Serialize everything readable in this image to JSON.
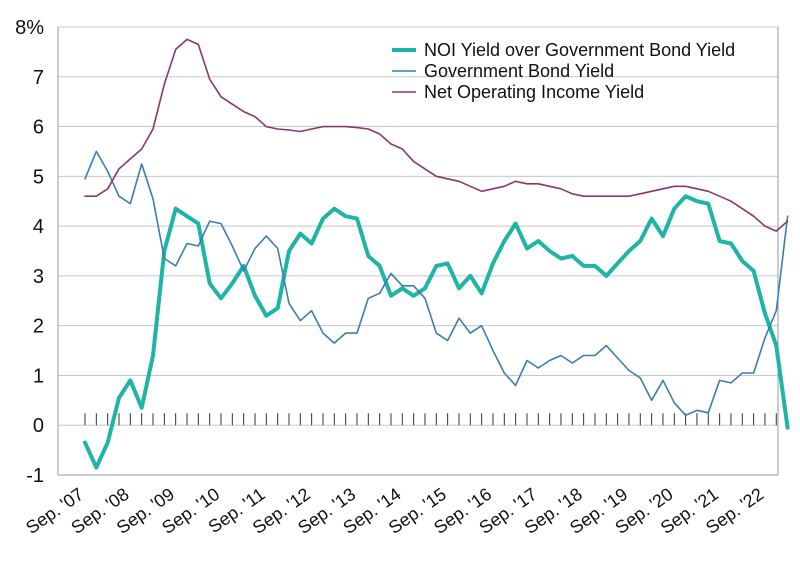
{
  "chart_data": {
    "type": "line",
    "title": "",
    "xlabel": "",
    "ylabel": "",
    "ylim": [
      -1,
      8
    ],
    "y_ticks": [
      "-1",
      "0",
      "1",
      "2",
      "3",
      "4",
      "5",
      "6",
      "7",
      "8%"
    ],
    "x_ticks": [
      "Sep. '07",
      "Sep. '08",
      "Sep. '09",
      "Sep. '10",
      "Sep. '11",
      "Sep. '12",
      "Sep. '13",
      "Sep. '14",
      "Sep. '15",
      "Sep. '16",
      "Sep. '17",
      "Sep. '18",
      "Sep. '19",
      "Sep. '20",
      "Sep. '21",
      "Sep. '22"
    ],
    "grid": true,
    "legend_position": "top-right",
    "colors": {
      "noi_spread": "#1eb5a6",
      "gov_bond": "#3a7db5",
      "noi_yield": "#8a3770"
    },
    "series": [
      {
        "name": "NOI Yield over Government Bond Yield",
        "key": "noi_spread",
        "points": [
          [
            2007.0,
            -0.35
          ],
          [
            2007.25,
            -0.85
          ],
          [
            2007.5,
            -0.35
          ],
          [
            2007.75,
            0.55
          ],
          [
            2008.0,
            0.9
          ],
          [
            2008.25,
            0.35
          ],
          [
            2008.5,
            1.4
          ],
          [
            2008.75,
            3.5
          ],
          [
            2009.0,
            4.35
          ],
          [
            2009.25,
            4.2
          ],
          [
            2009.5,
            4.05
          ],
          [
            2009.75,
            2.85
          ],
          [
            2010.0,
            2.55
          ],
          [
            2010.25,
            2.85
          ],
          [
            2010.5,
            3.2
          ],
          [
            2010.75,
            2.6
          ],
          [
            2011.0,
            2.2
          ],
          [
            2011.25,
            2.35
          ],
          [
            2011.5,
            3.5
          ],
          [
            2011.75,
            3.85
          ],
          [
            2012.0,
            3.65
          ],
          [
            2012.25,
            4.15
          ],
          [
            2012.5,
            4.35
          ],
          [
            2012.75,
            4.2
          ],
          [
            2013.0,
            4.15
          ],
          [
            2013.25,
            3.4
          ],
          [
            2013.5,
            3.2
          ],
          [
            2013.75,
            2.6
          ],
          [
            2014.0,
            2.75
          ],
          [
            2014.25,
            2.6
          ],
          [
            2014.5,
            2.75
          ],
          [
            2014.75,
            3.2
          ],
          [
            2015.0,
            3.25
          ],
          [
            2015.25,
            2.75
          ],
          [
            2015.5,
            3.0
          ],
          [
            2015.75,
            2.65
          ],
          [
            2016.0,
            3.25
          ],
          [
            2016.25,
            3.7
          ],
          [
            2016.5,
            4.05
          ],
          [
            2016.75,
            3.55
          ],
          [
            2017.0,
            3.7
          ],
          [
            2017.25,
            3.5
          ],
          [
            2017.5,
            3.35
          ],
          [
            2017.75,
            3.4
          ],
          [
            2018.0,
            3.2
          ],
          [
            2018.25,
            3.2
          ],
          [
            2018.5,
            3.0
          ],
          [
            2018.75,
            3.25
          ],
          [
            2019.0,
            3.5
          ],
          [
            2019.25,
            3.7
          ],
          [
            2019.5,
            4.15
          ],
          [
            2019.75,
            3.8
          ],
          [
            2020.0,
            4.35
          ],
          [
            2020.25,
            4.6
          ],
          [
            2020.5,
            4.5
          ],
          [
            2020.75,
            4.45
          ],
          [
            2021.0,
            3.7
          ],
          [
            2021.25,
            3.65
          ],
          [
            2021.5,
            3.3
          ],
          [
            2021.75,
            3.1
          ],
          [
            2022.0,
            2.25
          ],
          [
            2022.25,
            1.6
          ],
          [
            2022.5,
            -0.05
          ]
        ]
      },
      {
        "name": "Government Bond Yield",
        "key": "gov_bond",
        "points": [
          [
            2007.0,
            4.95
          ],
          [
            2007.25,
            5.5
          ],
          [
            2007.5,
            5.1
          ],
          [
            2007.75,
            4.6
          ],
          [
            2008.0,
            4.45
          ],
          [
            2008.25,
            5.25
          ],
          [
            2008.5,
            4.55
          ],
          [
            2008.75,
            3.35
          ],
          [
            2009.0,
            3.2
          ],
          [
            2009.25,
            3.65
          ],
          [
            2009.5,
            3.6
          ],
          [
            2009.75,
            4.1
          ],
          [
            2010.0,
            4.05
          ],
          [
            2010.25,
            3.6
          ],
          [
            2010.5,
            3.1
          ],
          [
            2010.75,
            3.55
          ],
          [
            2011.0,
            3.8
          ],
          [
            2011.25,
            3.55
          ],
          [
            2011.5,
            2.45
          ],
          [
            2011.75,
            2.1
          ],
          [
            2012.0,
            2.3
          ],
          [
            2012.25,
            1.85
          ],
          [
            2012.5,
            1.65
          ],
          [
            2012.75,
            1.85
          ],
          [
            2013.0,
            1.85
          ],
          [
            2013.25,
            2.55
          ],
          [
            2013.5,
            2.65
          ],
          [
            2013.75,
            3.05
          ],
          [
            2014.0,
            2.8
          ],
          [
            2014.25,
            2.8
          ],
          [
            2014.5,
            2.55
          ],
          [
            2014.75,
            1.85
          ],
          [
            2015.0,
            1.7
          ],
          [
            2015.25,
            2.15
          ],
          [
            2015.5,
            1.85
          ],
          [
            2015.75,
            2.0
          ],
          [
            2016.0,
            1.5
          ],
          [
            2016.25,
            1.05
          ],
          [
            2016.5,
            0.8
          ],
          [
            2016.75,
            1.3
          ],
          [
            2017.0,
            1.15
          ],
          [
            2017.25,
            1.3
          ],
          [
            2017.5,
            1.4
          ],
          [
            2017.75,
            1.25
          ],
          [
            2018.0,
            1.4
          ],
          [
            2018.25,
            1.4
          ],
          [
            2018.5,
            1.6
          ],
          [
            2018.75,
            1.35
          ],
          [
            2019.0,
            1.1
          ],
          [
            2019.25,
            0.95
          ],
          [
            2019.5,
            0.5
          ],
          [
            2019.75,
            0.9
          ],
          [
            2020.0,
            0.45
          ],
          [
            2020.25,
            0.2
          ],
          [
            2020.5,
            0.3
          ],
          [
            2020.75,
            0.25
          ],
          [
            2021.0,
            0.9
          ],
          [
            2021.25,
            0.85
          ],
          [
            2021.5,
            1.05
          ],
          [
            2021.75,
            1.05
          ],
          [
            2022.0,
            1.75
          ],
          [
            2022.25,
            2.3
          ],
          [
            2022.5,
            4.2
          ]
        ]
      },
      {
        "name": "Net Operating Income Yield",
        "key": "noi_yield",
        "points": [
          [
            2007.0,
            4.6
          ],
          [
            2007.25,
            4.6
          ],
          [
            2007.5,
            4.75
          ],
          [
            2007.75,
            5.15
          ],
          [
            2008.0,
            5.35
          ],
          [
            2008.25,
            5.55
          ],
          [
            2008.5,
            5.95
          ],
          [
            2008.75,
            6.85
          ],
          [
            2009.0,
            7.55
          ],
          [
            2009.25,
            7.75
          ],
          [
            2009.5,
            7.65
          ],
          [
            2009.75,
            6.95
          ],
          [
            2010.0,
            6.6
          ],
          [
            2010.25,
            6.45
          ],
          [
            2010.5,
            6.3
          ],
          [
            2010.75,
            6.2
          ],
          [
            2011.0,
            6.0
          ],
          [
            2011.25,
            5.95
          ],
          [
            2011.5,
            5.93
          ],
          [
            2011.75,
            5.9
          ],
          [
            2012.0,
            5.95
          ],
          [
            2012.25,
            6.0
          ],
          [
            2012.5,
            6.0
          ],
          [
            2012.75,
            6.0
          ],
          [
            2013.0,
            5.98
          ],
          [
            2013.25,
            5.95
          ],
          [
            2013.5,
            5.85
          ],
          [
            2013.75,
            5.65
          ],
          [
            2014.0,
            5.55
          ],
          [
            2014.25,
            5.3
          ],
          [
            2014.5,
            5.15
          ],
          [
            2014.75,
            5.0
          ],
          [
            2015.0,
            4.95
          ],
          [
            2015.25,
            4.9
          ],
          [
            2015.5,
            4.8
          ],
          [
            2015.75,
            4.7
          ],
          [
            2016.0,
            4.75
          ],
          [
            2016.25,
            4.8
          ],
          [
            2016.5,
            4.9
          ],
          [
            2016.75,
            4.85
          ],
          [
            2017.0,
            4.85
          ],
          [
            2017.25,
            4.8
          ],
          [
            2017.5,
            4.75
          ],
          [
            2017.75,
            4.65
          ],
          [
            2018.0,
            4.6
          ],
          [
            2018.25,
            4.6
          ],
          [
            2018.5,
            4.6
          ],
          [
            2018.75,
            4.6
          ],
          [
            2019.0,
            4.6
          ],
          [
            2019.25,
            4.65
          ],
          [
            2019.5,
            4.7
          ],
          [
            2019.75,
            4.75
          ],
          [
            2020.0,
            4.8
          ],
          [
            2020.25,
            4.8
          ],
          [
            2020.5,
            4.75
          ],
          [
            2020.75,
            4.7
          ],
          [
            2021.0,
            4.6
          ],
          [
            2021.25,
            4.5
          ],
          [
            2021.5,
            4.35
          ],
          [
            2021.75,
            4.2
          ],
          [
            2022.0,
            4.0
          ],
          [
            2022.25,
            3.9
          ],
          [
            2022.5,
            4.1
          ]
        ]
      }
    ]
  }
}
